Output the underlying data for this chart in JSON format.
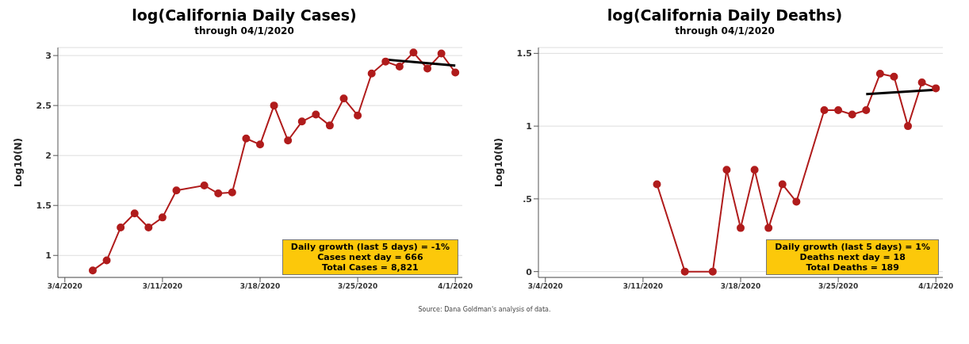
{
  "chart_data": [
    {
      "type": "line",
      "title": "log(California Daily Cases)",
      "subtitle": "through 04/1/2020",
      "ylabel": "Log10(N)",
      "series": [
        {
          "color": "#b01c1c",
          "marker": "circle",
          "x": [
            "2020-03-06",
            "2020-03-07",
            "2020-03-08",
            "2020-03-09",
            "2020-03-10",
            "2020-03-11",
            "2020-03-12",
            "2020-03-14",
            "2020-03-15",
            "2020-03-16",
            "2020-03-17",
            "2020-03-18",
            "2020-03-19",
            "2020-03-20",
            "2020-03-21",
            "2020-03-22",
            "2020-03-23",
            "2020-03-24",
            "2020-03-25",
            "2020-03-26",
            "2020-03-27",
            "2020-03-28",
            "2020-03-29",
            "2020-03-30",
            "2020-03-31",
            "2020-04-01"
          ],
          "values": [
            0.85,
            0.95,
            1.28,
            1.42,
            1.28,
            1.38,
            1.65,
            1.7,
            1.62,
            1.63,
            2.17,
            2.11,
            2.5,
            2.15,
            2.34,
            2.41,
            2.3,
            2.57,
            2.4,
            2.82,
            2.94,
            2.89,
            3.03,
            2.87,
            3.02,
            2.83
          ]
        },
        {
          "color": "#000000",
          "marker": "none",
          "x": [
            "2020-03-27",
            "2020-04-01"
          ],
          "values": [
            2.96,
            2.9
          ]
        }
      ],
      "xlim": [
        "2020-03-03T12:00",
        "2020-04-01T12:00"
      ],
      "xticks": [
        {
          "value": "2020-03-04",
          "label": "3/4/2020"
        },
        {
          "value": "2020-03-11",
          "label": "3/11/2020"
        },
        {
          "value": "2020-03-18",
          "label": "3/18/2020"
        },
        {
          "value": "2020-03-25",
          "label": "3/25/2020"
        },
        {
          "value": "2020-04-01",
          "label": "4/1/2020"
        }
      ],
      "ylim": [
        0.78,
        3.08
      ],
      "yticks": [
        1,
        1.5,
        2,
        2.5,
        3
      ],
      "grid": "y",
      "legend": false,
      "annotations": [
        "Daily growth (last 5 days) = -1%\nCases next day = 666\nTotal Cases = 8,821"
      ]
    },
    {
      "type": "line",
      "title": "log(California Daily Deaths)",
      "subtitle": "through 04/1/2020",
      "ylabel": "Log10(N)",
      "series": [
        {
          "color": "#b01c1c",
          "marker": "circle",
          "x": [
            "2020-03-12",
            "2020-03-14",
            "2020-03-16",
            "2020-03-17",
            "2020-03-18",
            "2020-03-19",
            "2020-03-20",
            "2020-03-21",
            "2020-03-22",
            "2020-03-24",
            "2020-03-25",
            "2020-03-26",
            "2020-03-27",
            "2020-03-28",
            "2020-03-29",
            "2020-03-30",
            "2020-03-31",
            "2020-04-01"
          ],
          "values": [
            0.6,
            0,
            0,
            0.7,
            0.3,
            0.7,
            0.3,
            0.6,
            0.48,
            1.11,
            1.11,
            1.08,
            1.11,
            1.36,
            1.34,
            1,
            1.3,
            1.26
          ]
        },
        {
          "color": "#000000",
          "marker": "none",
          "x": [
            "2020-03-27",
            "2020-04-01"
          ],
          "values": [
            1.22,
            1.25
          ]
        }
      ],
      "xlim": [
        "2020-03-03T12:00",
        "2020-04-01T12:00"
      ],
      "xticks": [
        {
          "value": "2020-03-04",
          "label": "3/4/2020"
        },
        {
          "value": "2020-03-11",
          "label": "3/11/2020"
        },
        {
          "value": "2020-03-18",
          "label": "3/18/2020"
        },
        {
          "value": "2020-03-25",
          "label": "3/25/2020"
        },
        {
          "value": "2020-04-01",
          "label": "4/1/2020"
        }
      ],
      "ylim": [
        -0.04,
        1.54
      ],
      "yticks": [
        {
          "value": 0,
          "label": "0"
        },
        {
          "value": 0.5,
          "label": ".5"
        },
        {
          "value": 1,
          "label": "1"
        },
        {
          "value": 1.5,
          "label": "1.5"
        }
      ],
      "grid": "y",
      "legend": false,
      "annotations": [
        "Daily growth (last 5 days) = 1%\nDeaths next day = 18\nTotal Deaths = 189",
        "Source:  Dana Goldman's analysis of data."
      ]
    }
  ]
}
